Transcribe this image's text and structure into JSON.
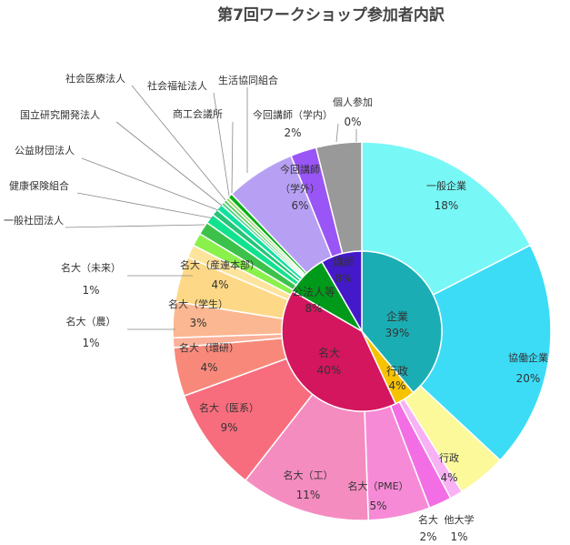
{
  "chart_data": {
    "type": "pie",
    "title": "第7回ワークショップ参加者内訳",
    "inner": [
      {
        "label": "企業",
        "value": "39%",
        "color": "#1aaeb4",
        "text_color": "#ffffff"
      },
      {
        "label": "行政",
        "value": "4%",
        "color": "#f7c300",
        "text_color": "#ffffff"
      },
      {
        "label": "名大",
        "value": "40%",
        "color": "#d3165e",
        "text_color": "#ffffff"
      },
      {
        "label": "公法人等",
        "value": "8%",
        "color": "#009a1a",
        "text_color": "#ffffff"
      },
      {
        "label": "講師",
        "value": "8%",
        "color": "#4419c9",
        "text_color": "#ffffff"
      }
    ],
    "outer": [
      {
        "label": "一般企業",
        "value": "18%",
        "color": "#78f7f7"
      },
      {
        "label": "協働企業",
        "value": "20%",
        "color": "#3cdcf6"
      },
      {
        "label": "行政",
        "value": "4%",
        "color": "#fbf99a"
      },
      {
        "label": "他大学",
        "value": "1%",
        "color": "#f8b2f4"
      },
      {
        "label": "名大",
        "value": "2%",
        "color": "#f36ee4"
      },
      {
        "label": "名大（PME）",
        "value": "5%",
        "color": "#f78ad6"
      },
      {
        "label": "名大（工）",
        "value": "11%",
        "color": "#f58cc0"
      },
      {
        "label": "名大（医系）",
        "value": "9%",
        "color": "#f86d7d"
      },
      {
        "label": "名大（環研）",
        "value": "4%",
        "color": "#f8897a"
      },
      {
        "label": "名大（農）",
        "value": "1%",
        "color": "#fbb09a"
      },
      {
        "label": "名大（学生）",
        "value": "3%",
        "color": "#fbb791"
      },
      {
        "label": "名大（産連本部）",
        "value": "4%",
        "color": "#fdd886"
      },
      {
        "label": "名大（未来）",
        "value": "1%",
        "color": "#fde49c"
      },
      {
        "label": "一般社団法人",
        "value": "",
        "color": "#8af14c"
      },
      {
        "label": "健康保険組合",
        "value": "",
        "color": "#3cc24b"
      },
      {
        "label": "公益財団法人",
        "value": "",
        "color": "#11e28e"
      },
      {
        "label": "国立研究開発法人",
        "value": "",
        "color": "#24c576"
      },
      {
        "label": "社会医療法人",
        "value": "",
        "color": "#12e0a0"
      },
      {
        "label": "社会福祉法人",
        "value": "",
        "color": "#50d080"
      },
      {
        "label": "商工会議所",
        "value": "",
        "color": "#5ac85e"
      },
      {
        "label": "生活協同組合",
        "value": "",
        "color": "#9bd86a"
      },
      {
        "label": "今回講師（学内）",
        "value": "2%",
        "color": "#9a55f7"
      },
      {
        "label": "今回講師（学外）",
        "value": "6%",
        "color": "#b7a0f4"
      },
      {
        "label": "個人参加",
        "value": "0%",
        "color": "#999999"
      },
      {
        "label": "",
        "value": "",
        "color": "#08b01a"
      }
    ]
  }
}
